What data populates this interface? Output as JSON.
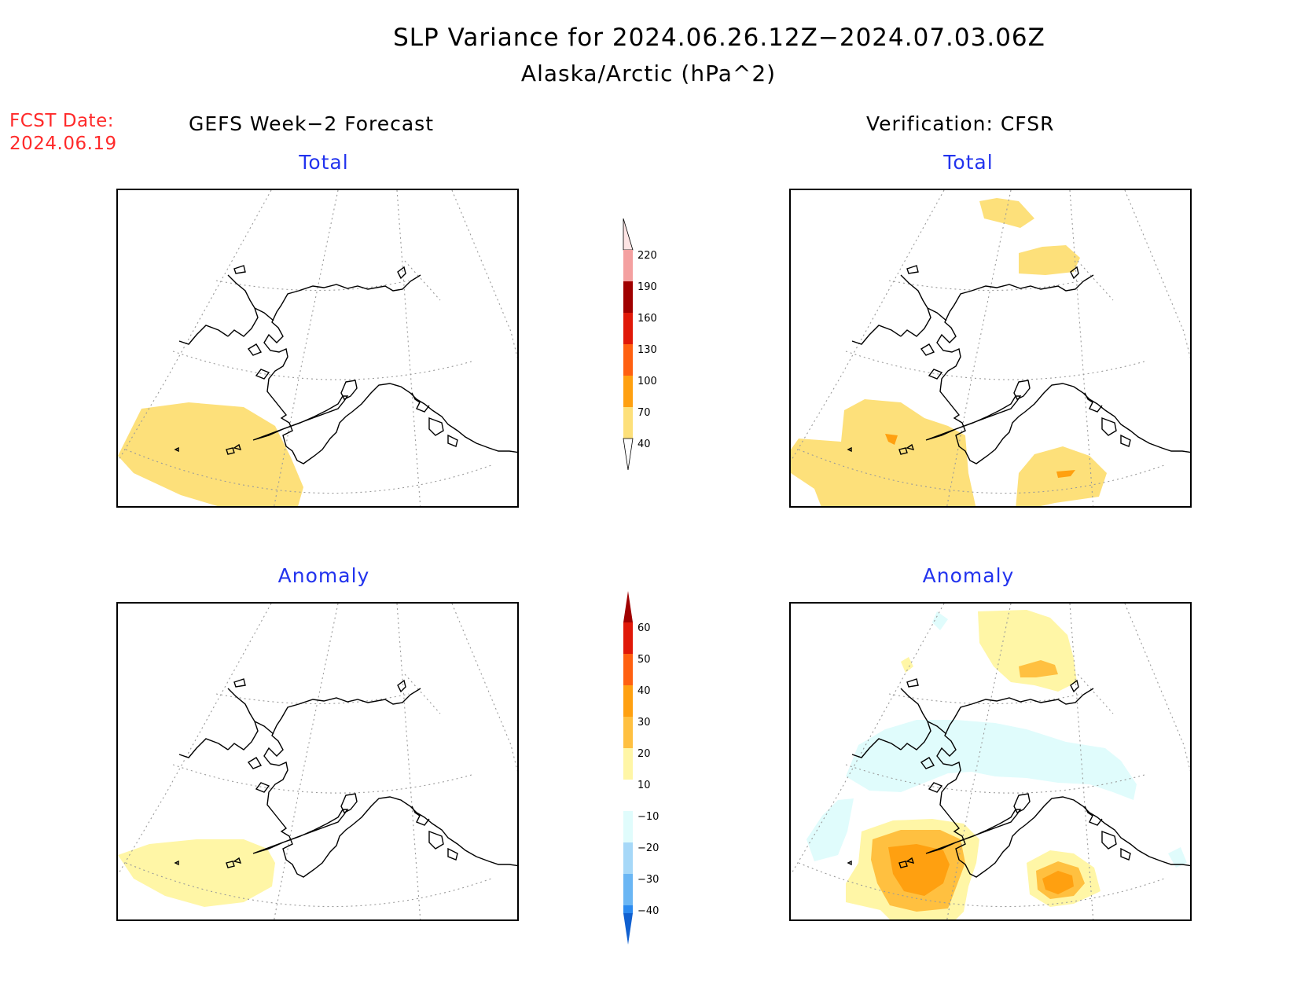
{
  "title": {
    "line1": "SLP Variance for 2024.06.26.12Z−2024.07.03.06Z",
    "line2": "Alaska/Arctic (hPa^2)"
  },
  "forecast_date": {
    "label": "FCST Date:",
    "value": "2024.06.19"
  },
  "columns": {
    "left": "GEFS Week−2 Forecast",
    "right": "Verification: CFSR"
  },
  "panels": {
    "forecast_total": {
      "title": "Total"
    },
    "verification_total": {
      "title": "Total"
    },
    "forecast_anomaly": {
      "title": "Anomaly"
    },
    "verification_anomaly": {
      "title": "Anomaly"
    }
  },
  "colorbars": {
    "total": {
      "labels": [
        "220",
        "190",
        "160",
        "130",
        "100",
        "70",
        "40"
      ],
      "colors": [
        "#fde4e4",
        "#f4a0a0",
        "#a00000",
        "#e01808",
        "#ff6010",
        "#ffa010",
        "#fde07a"
      ]
    },
    "anomaly": {
      "labels": [
        "60",
        "50",
        "40",
        "30",
        "20",
        "10",
        "−10",
        "−20",
        "−30",
        "−40"
      ],
      "colors": [
        "#a00000",
        "#e01808",
        "#ff6010",
        "#ffa010",
        "#ffc040",
        "#fff6a6",
        "#ffffff",
        "#e0fcfc",
        "#a6d8f8",
        "#6ab6f4",
        "#2a8af0",
        "#1060d0"
      ]
    }
  },
  "legend_colors": {
    "yellow_light": "#fff6a6",
    "yellow": "#fde07a",
    "orange_light": "#ffc040",
    "orange": "#ffa010",
    "cyan_light": "#e0fcfc",
    "title_blue": "#2233ee",
    "fcst_red": "#ff2a2a"
  }
}
